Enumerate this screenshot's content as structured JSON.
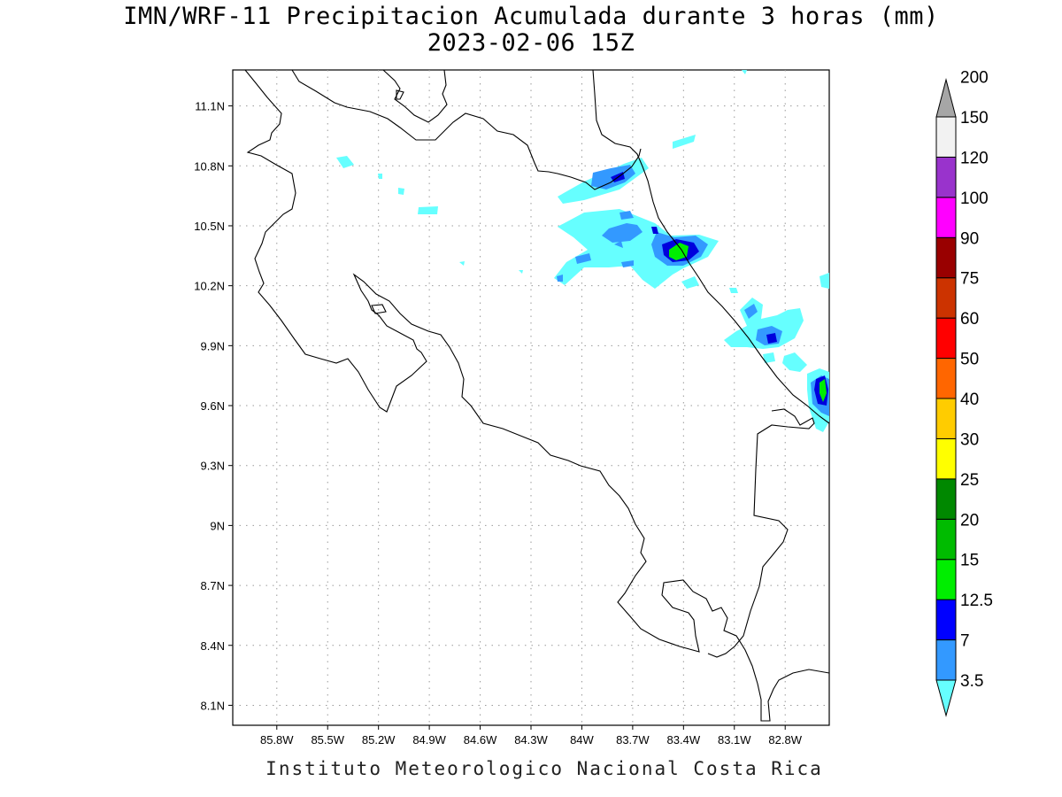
{
  "title": {
    "line1": "IMN/WRF-11 Precipitacion Acumulada durante 3 horas (mm)",
    "line2": "2023-02-06 15Z"
  },
  "credit": "Instituto Meteorologico Nacional Costa Rica",
  "map": {
    "lon_range": [
      -86.06,
      -82.54
    ],
    "lat_range": [
      8.0,
      11.28
    ],
    "lon_ticks": [
      {
        "value": -85.8,
        "label": "85.8W"
      },
      {
        "value": -85.5,
        "label": "85.5W"
      },
      {
        "value": -85.2,
        "label": "85.2W"
      },
      {
        "value": -84.9,
        "label": "84.9W"
      },
      {
        "value": -84.6,
        "label": "84.6W"
      },
      {
        "value": -84.3,
        "label": "84.3W"
      },
      {
        "value": -84.0,
        "label": "84W"
      },
      {
        "value": -83.7,
        "label": "83.7W"
      },
      {
        "value": -83.4,
        "label": "83.4W"
      },
      {
        "value": -83.1,
        "label": "83.1W"
      },
      {
        "value": -82.8,
        "label": "82.8W"
      }
    ],
    "lat_ticks": [
      {
        "value": 11.1,
        "label": "11.1N"
      },
      {
        "value": 10.8,
        "label": "10.8N"
      },
      {
        "value": 10.5,
        "label": "10.5N"
      },
      {
        "value": 10.2,
        "label": "10.2N"
      },
      {
        "value": 9.9,
        "label": "9.9N"
      },
      {
        "value": 9.6,
        "label": "9.6N"
      },
      {
        "value": 9.3,
        "label": "9.3N"
      },
      {
        "value": 9.0,
        "label": "9N"
      },
      {
        "value": 8.7,
        "label": "8.7N"
      },
      {
        "value": 8.4,
        "label": "8.4N"
      },
      {
        "value": 8.1,
        "label": "8.1N"
      }
    ],
    "grid": "dotted"
  },
  "colorbar": {
    "bins": [
      {
        "label": "3.5",
        "color": "#66ffff"
      },
      {
        "label": "7",
        "color": "#3399ff"
      },
      {
        "label": "12.5",
        "color": "#0000ff"
      },
      {
        "label": "15",
        "color": "#00ee00"
      },
      {
        "label": "20",
        "color": "#00bb00"
      },
      {
        "label": "25",
        "color": "#008800"
      },
      {
        "label": "30",
        "color": "#ffff00"
      },
      {
        "label": "40",
        "color": "#ffcc00"
      },
      {
        "label": "50",
        "color": "#ff6600"
      },
      {
        "label": "60",
        "color": "#ff0000"
      },
      {
        "label": "75",
        "color": "#cc3300"
      },
      {
        "label": "90",
        "color": "#990000"
      },
      {
        "label": "100",
        "color": "#ff00ff"
      },
      {
        "label": "120",
        "color": "#9933cc"
      },
      {
        "label": "150",
        "color": "#f2f2f2"
      },
      {
        "label": "200",
        "color": "#a6a6a6"
      }
    ]
  }
}
